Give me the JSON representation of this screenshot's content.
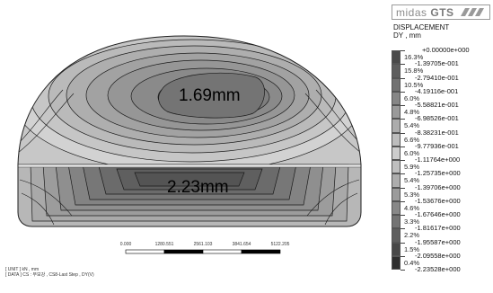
{
  "annotations": {
    "upper_value": "1.69mm",
    "lower_value": "2.23mm"
  },
  "unit_info": {
    "line1": "[ UNIT ] kN , mm",
    "line2": "[ DATA ] CS : 무보강 , CS8-Last Step , DY(V)"
  },
  "scale_bar": {
    "labels": [
      "0.000",
      "1280.551",
      "2561.103",
      "3841.654",
      "5122.205"
    ]
  },
  "logo": {
    "brand": "midas",
    "product": "GTS"
  },
  "legend": {
    "title_line1": "DISPLACEMENT",
    "title_line2": "DY , mm",
    "values": [
      "+0.00000e+000",
      "-1.39705e-001",
      "-2.79410e-001",
      "-4.19116e-001",
      "-5.58821e-001",
      "-6.98526e-001",
      "-8.38231e-001",
      "-9.77936e-001",
      "-1.11764e+000",
      "-1.25735e+000",
      "-1.39706e+000",
      "-1.53676e+000",
      "-1.67646e+000",
      "-1.81617e+000",
      "-1.95587e+000",
      "-2.09558e+000",
      "-2.23528e+000"
    ],
    "percents": [
      "16.3%",
      "15.8%",
      "10.5%",
      "6.0%",
      "4.8%",
      "5.4%",
      "6.6%",
      "6.0%",
      "5.9%",
      "5.4%",
      "5.3%",
      "4.6%",
      "3.3%",
      "2.2%",
      "1.5%",
      "0.4%"
    ],
    "colors": [
      "#4a4a4a",
      "#5e5e5e",
      "#727272",
      "#868686",
      "#9a9a9a",
      "#acacac",
      "#bdbdbd",
      "#cdcdcd",
      "#bfbfbf",
      "#adadad",
      "#9b9b9b",
      "#888888",
      "#747474",
      "#5f5f5f",
      "#484848",
      "#2e2e2e"
    ]
  }
}
